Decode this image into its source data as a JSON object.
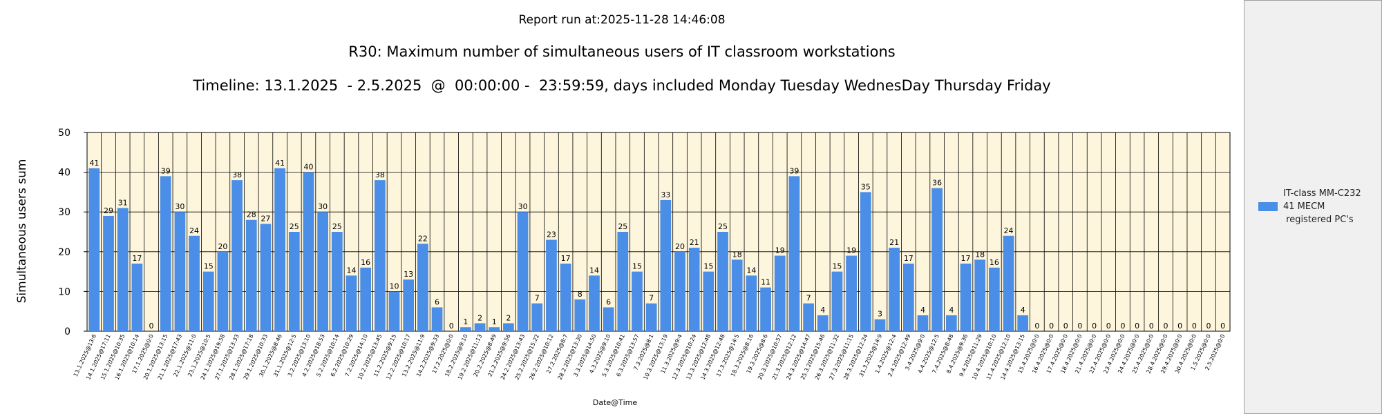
{
  "header": {
    "report_run": "Report run at:2025-11-28 14:46:08",
    "title": "R30: Maximum number of simultaneous users of IT classroom workstations",
    "subtitle": "Timeline: 13.1.2025  - 2.5.2025  @  00:00:00 -  23:59:59, days included Monday Tuesday WednesDay Thursday Friday"
  },
  "legend": {
    "label": "IT-class MM-C232\n41 MECM\n registered PC's"
  },
  "colors": {
    "bar": "#4a8ee8",
    "plot_background": "#fdf5dc",
    "grid": "#000000"
  },
  "chart_data": {
    "type": "bar",
    "xlabel": "Date@Time",
    "ylabel": "Simultaneous users sum",
    "ylim": [
      0,
      50
    ],
    "yticks": [
      0,
      10,
      20,
      30,
      40,
      50
    ],
    "grid": true,
    "legend_position": "right",
    "categories": [
      "13.1.2025@13:6",
      "14.1.2025@17:11",
      "15.1.2025@10:35",
      "16.1.2025@10:14",
      "17.1.2025@0:0",
      "20.1.2025@13:15",
      "21.1.2025@17:43",
      "22.1.2025@11:0",
      "23.1.2025@10:5",
      "24.1.2025@19:58",
      "27.1.2025@13:33",
      "28.1.2025@17:18",
      "29.1.2025@10:33",
      "30.1.2025@8:46",
      "31.1.2025@12:5",
      "3.2.2025@13:10",
      "4.2.2025@18:53",
      "5.2.2025@10:14",
      "6.2.2025@10:29",
      "7.2.2025@14:10",
      "10.2.2025@13:45",
      "11.2.2025@9:15",
      "12.2.2025@10:17",
      "13.2.2025@11:9",
      "14.2.2025@9:33",
      "17.2.2025@0:0",
      "18.2.2025@9:10",
      "19.2.2025@11:13",
      "20.2.2025@8:49",
      "21.2.2025@9:56",
      "24.2.2025@13:43",
      "25.2.2025@15:22",
      "26.2.2025@10:12",
      "27.2.2025@8:7",
      "28.2.2025@13:30",
      "3.3.2025@14:50",
      "4.3.2025@9:10",
      "5.3.2025@10:41",
      "6.3.2025@13:57",
      "7.3.2025@8:1",
      "10.3.2025@13:19",
      "11.3.2025@9:4",
      "12.3.2025@10:24",
      "13.3.2025@12:48",
      "14.3.2025@12:48",
      "17.3.2025@14:5",
      "18.3.2025@8:16",
      "19.3.2025@8:6",
      "20.3.2025@10:57",
      "21.3.2025@12:12",
      "24.3.2025@14:47",
      "25.3.2025@15:46",
      "26.3.2025@11:32",
      "27.3.2025@11:15",
      "28.3.2025@12:24",
      "31.3.2025@14:9",
      "1.4.2025@12:4",
      "2.4.2025@12:49",
      "3.4.2025@9:0",
      "4.4.2025@12:5",
      "7.4.2025@8:48",
      "8.4.2025@9:36",
      "9.4.2025@11:29",
      "10.4.2025@10:10",
      "11.4.2025@12:10",
      "14.4.2025@13:15",
      "15.4.2025@0:0",
      "16.4.2025@0:0",
      "17.4.2025@0:0",
      "18.4.2025@0:0",
      "21.4.2025@0:0",
      "22.4.2025@0:0",
      "23.4.2025@0:0",
      "24.4.2025@0:0",
      "25.4.2025@0:0",
      "28.4.2025@0:0",
      "29.4.2025@0:0",
      "30.4.2025@0:0",
      "1.5.2025@0:0",
      "2.5.2025@0:0"
    ],
    "series": [
      {
        "name": "IT-class MM-C232\n41 MECM\n registered PC's",
        "values": [
          41,
          29,
          31,
          17,
          0,
          39,
          30,
          24,
          15,
          20,
          38,
          28,
          27,
          41,
          25,
          40,
          30,
          25,
          14,
          16,
          38,
          10,
          13,
          22,
          6,
          0,
          1,
          2,
          1,
          2,
          30,
          7,
          23,
          17,
          8,
          14,
          6,
          25,
          15,
          7,
          33,
          20,
          21,
          15,
          25,
          18,
          14,
          11,
          19,
          39,
          7,
          4,
          15,
          19,
          35,
          3,
          21,
          17,
          4,
          36,
          4,
          17,
          18,
          16,
          24,
          4,
          0,
          0,
          0,
          0,
          0,
          0,
          0,
          0,
          0,
          0,
          0,
          0,
          0,
          0
        ]
      }
    ]
  }
}
